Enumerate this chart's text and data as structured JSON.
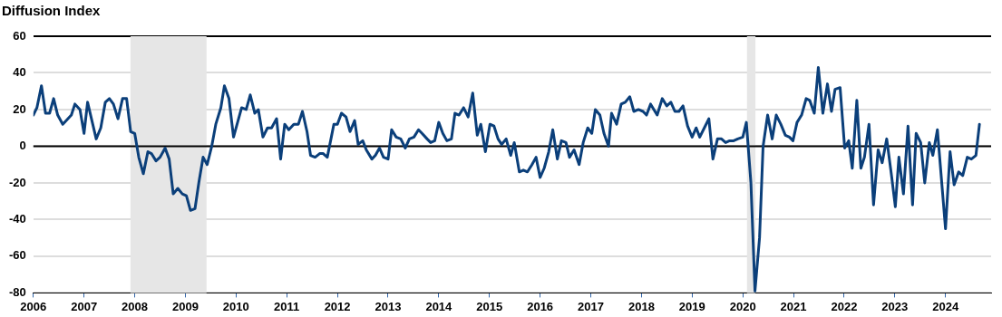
{
  "chart_data": {
    "type": "line",
    "title": "Diffusion Index",
    "x": [
      2006.0,
      2006.07,
      2006.16,
      2006.24,
      2006.32,
      2006.4,
      2006.48,
      2006.58,
      2006.75,
      2006.82,
      2006.92,
      2007.0,
      2007.07,
      2007.24,
      2007.33,
      2007.42,
      2007.5,
      2007.58,
      2007.67,
      2007.76,
      2007.84,
      2007.92,
      2008.0,
      2008.08,
      2008.17,
      2008.26,
      2008.33,
      2008.42,
      2008.5,
      2008.6,
      2008.68,
      2008.76,
      2008.85,
      2008.94,
      2009.02,
      2009.1,
      2009.19,
      2009.27,
      2009.35,
      2009.43,
      2009.52,
      2009.6,
      2009.7,
      2009.77,
      2009.86,
      2009.95,
      2010.03,
      2010.11,
      2010.2,
      2010.28,
      2010.37,
      2010.44,
      2010.53,
      2010.62,
      2010.7,
      2010.8,
      2010.88,
      2010.96,
      2011.04,
      2011.14,
      2011.23,
      2011.31,
      2011.4,
      2011.47,
      2011.56,
      2011.65,
      2011.72,
      2011.8,
      2011.88,
      2011.93,
      2012.0,
      2012.08,
      2012.17,
      2012.25,
      2012.34,
      2012.41,
      2012.5,
      2012.57,
      2012.68,
      2012.75,
      2012.83,
      2012.91,
      2013.0,
      2013.07,
      2013.16,
      2013.25,
      2013.34,
      2013.42,
      2013.51,
      2013.6,
      2013.67,
      2013.77,
      2013.84,
      2013.92,
      2014.0,
      2014.08,
      2014.16,
      2014.25,
      2014.32,
      2014.4,
      2014.49,
      2014.58,
      2014.67,
      2014.76,
      2014.83,
      2014.92,
      2015.01,
      2015.09,
      2015.17,
      2015.24,
      2015.33,
      2015.42,
      2015.49,
      2015.59,
      2015.67,
      2015.75,
      2015.84,
      2015.92,
      2016.0,
      2016.08,
      2016.17,
      2016.25,
      2016.34,
      2016.42,
      2016.51,
      2016.58,
      2016.67,
      2016.77,
      2016.85,
      2016.94,
      2017.02,
      2017.09,
      2017.18,
      2017.26,
      2017.35,
      2017.41,
      2017.51,
      2017.6,
      2017.68,
      2017.77,
      2017.85,
      2017.94,
      2018.03,
      2018.1,
      2018.18,
      2018.31,
      2018.41,
      2018.5,
      2018.58,
      2018.66,
      2018.74,
      2018.82,
      2018.91,
      2019.0,
      2019.08,
      2019.15,
      2019.24,
      2019.33,
      2019.41,
      2019.5,
      2019.58,
      2019.66,
      2019.74,
      2019.82,
      2019.9,
      2020.0,
      2020.07,
      2020.16,
      2020.24,
      2020.33,
      2020.4,
      2020.49,
      2020.58,
      2020.66,
      2020.75,
      2020.84,
      2020.92,
      2020.99,
      2021.07,
      2021.16,
      2021.25,
      2021.32,
      2021.41,
      2021.49,
      2021.58,
      2021.67,
      2021.75,
      2021.82,
      2021.92,
      2022.01,
      2022.09,
      2022.16,
      2022.25,
      2022.33,
      2022.4,
      2022.49,
      2022.58,
      2022.67,
      2022.75,
      2022.84,
      2022.93,
      2023.01,
      2023.08,
      2023.17,
      2023.26,
      2023.35,
      2023.42,
      2023.51,
      2023.59,
      2023.68,
      2023.75,
      2023.84,
      2024.0,
      2024.09,
      2024.17,
      2024.26,
      2024.34,
      2024.43,
      2024.51,
      2024.6,
      2024.67
    ],
    "series": [
      {
        "color": "#0b3f7a",
        "values": [
          17,
          21,
          33,
          18,
          18,
          26,
          17,
          12,
          17,
          23,
          20,
          7,
          24,
          4,
          10,
          24,
          26,
          23,
          15,
          26,
          26,
          8,
          7,
          -6,
          -15,
          -3,
          -4,
          -8,
          -6,
          -1,
          -7,
          -26,
          -23,
          -26,
          -27,
          -35,
          -34,
          -19,
          -6,
          -10,
          0,
          12,
          21,
          33,
          26,
          5,
          13,
          21,
          20,
          28,
          18,
          20,
          5,
          10,
          10,
          15,
          -7,
          12,
          9,
          12,
          12,
          19,
          8,
          -5,
          -6,
          -4,
          -4,
          -6,
          5,
          12,
          12,
          18,
          16,
          8,
          14,
          1,
          3,
          -2,
          -7,
          -5,
          -1,
          -6,
          -7,
          9,
          5,
          4,
          -1,
          4,
          5,
          9,
          7,
          4,
          2,
          3,
          13,
          7,
          3,
          4,
          18,
          17,
          21,
          16,
          29,
          6,
          12,
          -3,
          12,
          11,
          4,
          1,
          4,
          -5,
          2,
          -14,
          -13,
          -14,
          -10,
          -6,
          -17,
          -12,
          -3,
          9,
          -7,
          3,
          2,
          -6,
          -2,
          -10,
          2,
          10,
          7,
          20,
          17,
          7,
          0,
          18,
          12,
          23,
          24,
          27,
          19,
          20,
          19,
          17,
          23,
          17,
          26,
          22,
          24,
          19,
          19,
          22,
          11,
          5,
          10,
          5,
          10,
          15,
          -7,
          4,
          4,
          2,
          3,
          3,
          4,
          5,
          13,
          -20,
          -79,
          -50,
          0,
          17,
          4,
          17,
          12,
          6,
          5,
          3,
          13,
          17,
          26,
          25,
          18,
          43,
          18,
          34,
          19,
          31,
          32,
          -1,
          3,
          -12,
          25,
          -12,
          -6,
          12,
          -32,
          -2,
          -9,
          4,
          -15,
          -33,
          -6,
          -26,
          11,
          -32,
          7,
          2,
          -20,
          2,
          -5,
          9,
          -45,
          -3,
          -21,
          -14,
          -16,
          -6,
          -7,
          -5,
          12
        ]
      }
    ],
    "xlim": [
      2006,
      2024.9
    ],
    "xticks": [
      2006,
      2007,
      2008,
      2009,
      2010,
      2011,
      2012,
      2013,
      2014,
      2015,
      2016,
      2017,
      2018,
      2019,
      2020,
      2021,
      2022,
      2023,
      2024
    ],
    "ylim": [
      -80,
      60
    ],
    "yticks": [
      -80,
      -60,
      -40,
      -20,
      0,
      20,
      40,
      60
    ],
    "grid": "y",
    "legend": false,
    "marker": "none",
    "line_style": "solid",
    "ref_lines": [
      {
        "axis": "y",
        "value": 0,
        "color": "#000000"
      }
    ],
    "bands": [
      {
        "axis": "x",
        "from": 2007.917,
        "to": 2009.417,
        "color": "#e6e6e6"
      },
      {
        "axis": "x",
        "from": 2020.083,
        "to": 2020.25,
        "color": "#e6e6e6"
      }
    ]
  }
}
